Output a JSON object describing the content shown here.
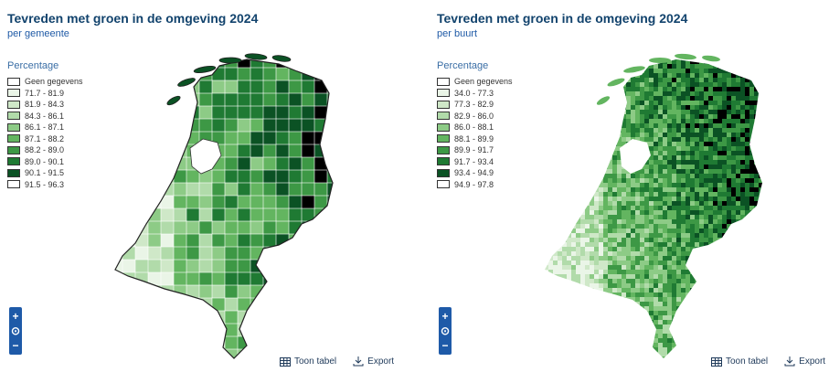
{
  "colors": [
    "#ffffff",
    "#eaf5e7",
    "#cfe8c8",
    "#b1dbaa",
    "#8dcb86",
    "#63b560",
    "#3d9845",
    "#1f7a33",
    "#0b5224"
  ],
  "panels": [
    {
      "title": "Tevreden met groen in de omgeving 2024",
      "subtitle": "per gemeente",
      "legend_title": "Percentage",
      "legend": [
        "Geen gegevens",
        "71.7 - 81.9",
        "81.9 - 84.3",
        "84.3 - 86.1",
        "86.1 - 87.1",
        "87.1 - 88.2",
        "88.2 - 89.0",
        "89.0 - 90.1",
        "90.1 - 91.5",
        "91.5 - 96.3"
      ],
      "zoom": [
        "+",
        "⊙",
        "−"
      ],
      "actions": {
        "table": "Toon tabel",
        "export": "Export"
      }
    },
    {
      "title": "Tevreden met groen in de omgeving 2024",
      "subtitle": "per buurt",
      "legend_title": "Percentage",
      "legend": [
        "Geen gegevens",
        "34.0 - 77.3",
        "77.3 - 82.9",
        "82.9 - 86.0",
        "86.0 - 88.1",
        "88.1 - 89.9",
        "89.9 - 91.7",
        "91.7 - 93.4",
        "93.4 - 94.9",
        "94.9 - 97.8"
      ],
      "zoom": [
        "+",
        "⊙",
        "−"
      ],
      "actions": {
        "table": "Toon tabel",
        "export": "Export"
      }
    }
  ]
}
